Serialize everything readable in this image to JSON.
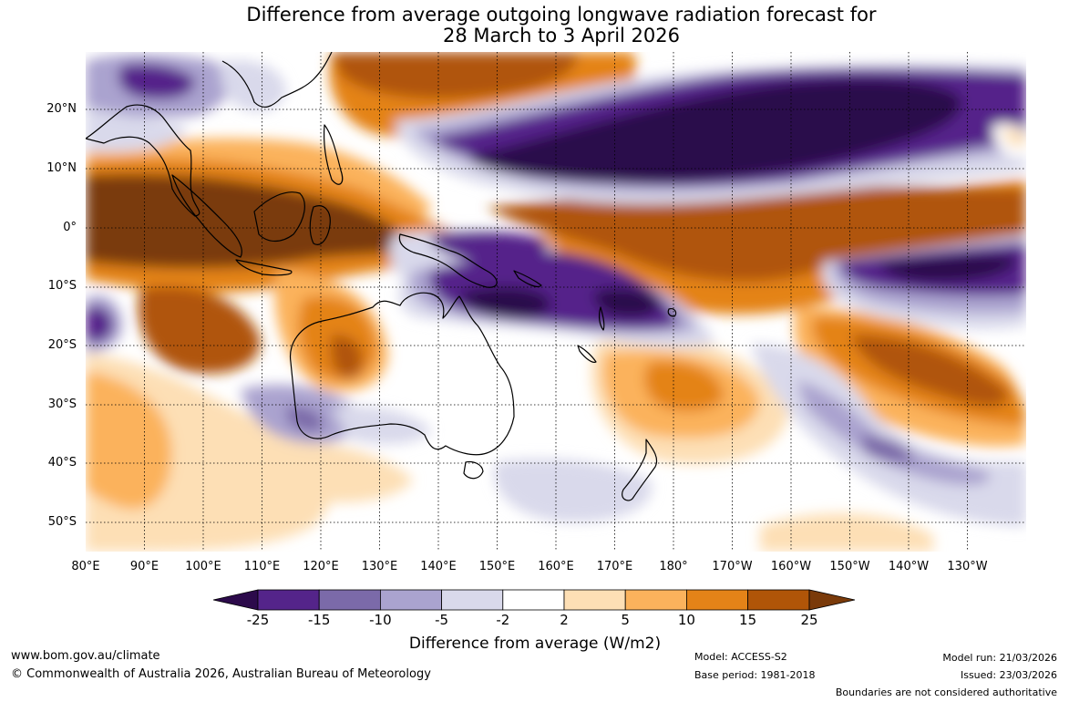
{
  "title": {
    "line1": "Difference from average outgoing longwave radiation forecast for",
    "line2": "28 March to 3 April 2026"
  },
  "map": {
    "lat_labels": [
      "20°N",
      "10°N",
      "0°",
      "10°S",
      "20°S",
      "30°S",
      "40°S",
      "50°S"
    ],
    "lon_labels": [
      "80°E",
      "90°E",
      "100°E",
      "110°E",
      "120°E",
      "130°E",
      "140°E",
      "150°E",
      "160°E",
      "170°E",
      "180°",
      "170°W",
      "160°W",
      "150°W",
      "140°W",
      "130°W"
    ]
  },
  "colorbar": {
    "ticks": [
      "-25",
      "-15",
      "-10",
      "-5",
      "-2",
      "2",
      "5",
      "10",
      "15",
      "25"
    ],
    "colors": [
      "#2c0a4b",
      "#54248a",
      "#7b6aa9",
      "#aaa3cf",
      "#d9d9eb",
      "#ffffff",
      "#fddfb5",
      "#fbb25c",
      "#e48318",
      "#b05508",
      "#7a3a0a"
    ],
    "label": "Difference from average (W/m2)"
  },
  "footer": {
    "website": "www.bom.gov.au/climate",
    "copyright": "© Commonwealth of Australia 2026, Australian Bureau of Meteorology",
    "model": "Model: ACCESS-S2",
    "base_period": "Base period: 1981-2018",
    "model_run": "Model run: 21/03/2026",
    "issued": "Issued: 23/03/2026",
    "boundaries": "Boundaries are not considered authoritative"
  }
}
